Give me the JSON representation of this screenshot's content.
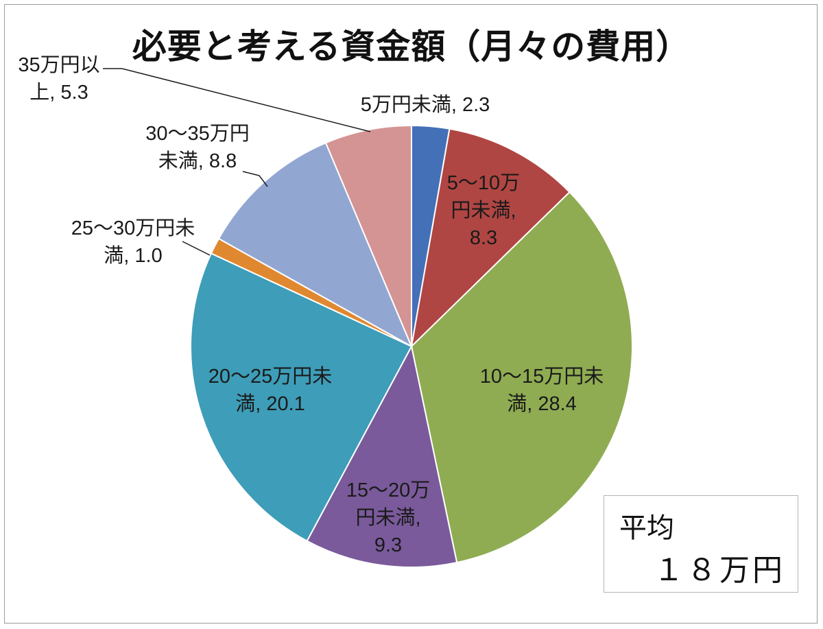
{
  "chart_data": {
    "type": "pie",
    "title": "必要と考える資金額（月々の費用）",
    "slices": [
      {
        "label": "5万円未満",
        "value": 2.3,
        "color": "#4470b8",
        "label_lines": [
          "5万円未満, 2.3"
        ]
      },
      {
        "label": "5～10万円未満",
        "value": 8.3,
        "color": "#b04643",
        "label_lines": [
          "5～10万",
          "円未満,",
          "8.3"
        ]
      },
      {
        "label": "10～15万円未満",
        "value": 28.4,
        "color": "#8fac52",
        "label_lines": [
          "10～15万円未",
          "満, 28.4"
        ]
      },
      {
        "label": "15～20万円未満",
        "value": 9.3,
        "color": "#7a5a9b",
        "label_lines": [
          "15～20万",
          "円未満,",
          "9.3"
        ]
      },
      {
        "label": "20～25万円未満",
        "value": 20.1,
        "color": "#3e9db8",
        "label_lines": [
          "20～25万円未",
          "満, 20.1"
        ]
      },
      {
        "label": "25～30万円未満",
        "value": 1.0,
        "color": "#e0882f",
        "label_lines": [
          "25～30万円未",
          "満, 1.0"
        ]
      },
      {
        "label": "30～35万円未満",
        "value": 8.8,
        "color": "#92a6d2",
        "label_lines": [
          "30～35万円",
          "未満, 8.8"
        ]
      },
      {
        "label": "35万円以上",
        "value": 5.3,
        "color": "#d49493",
        "label_lines": [
          "35万円以",
          "上, 5.3"
        ]
      }
    ]
  },
  "annotation": {
    "average_label": "平均",
    "average_value": "１８万円"
  }
}
